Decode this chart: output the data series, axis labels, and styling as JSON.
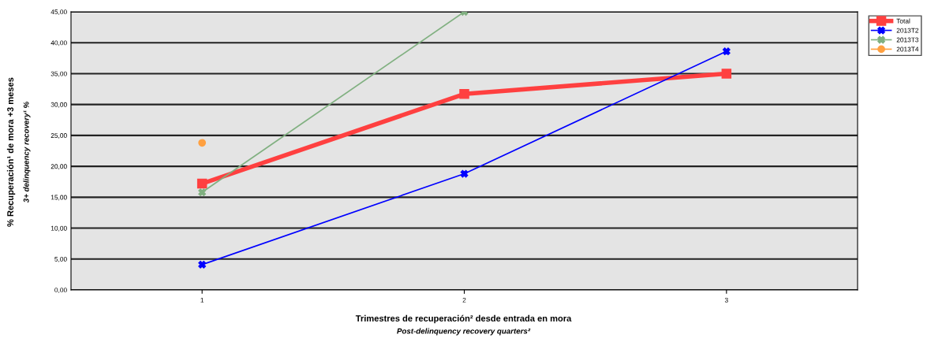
{
  "chart_data": {
    "type": "line",
    "xlabel": "Trimestres de recuperación² desde entrada en mora\nPost-delinquency recovery quarters²",
    "ylabel": "% Recuperación¹ de mora +3 meses\n3+ delinquency recovery¹ %",
    "categories": [
      "1",
      "2",
      "3"
    ],
    "series": [
      {
        "name": "Total",
        "color": "#ff4040",
        "values": [
          17.2,
          31.7,
          35.0
        ],
        "marker": "square"
      },
      {
        "name": "2013T2",
        "color": "#0000ff",
        "values": [
          4.1,
          18.8,
          38.6
        ],
        "marker": "cross"
      },
      {
        "name": "2013T3",
        "color": "#80b080",
        "values": [
          15.8,
          45.0,
          null
        ],
        "marker": "cross"
      },
      {
        "name": "2013T4",
        "color": "#ffa040",
        "values": [
          23.8,
          null,
          null
        ],
        "marker": "circle"
      }
    ],
    "ylim": [
      0,
      45
    ],
    "yticks": [
      {
        "value": 0,
        "label": "0,00"
      },
      {
        "value": 5,
        "label": "5,00"
      },
      {
        "value": 10,
        "label": "10,00"
      },
      {
        "value": 15,
        "label": "15,00"
      },
      {
        "value": 20,
        "label": "20,00"
      },
      {
        "value": 25,
        "label": "25,00"
      },
      {
        "value": 30,
        "label": "30,00"
      },
      {
        "value": 35,
        "label": "35,00"
      },
      {
        "value": 40,
        "label": "40,00"
      },
      {
        "value": 45,
        "label": "45,00"
      }
    ],
    "grid": "y",
    "legend": "top right outside"
  }
}
